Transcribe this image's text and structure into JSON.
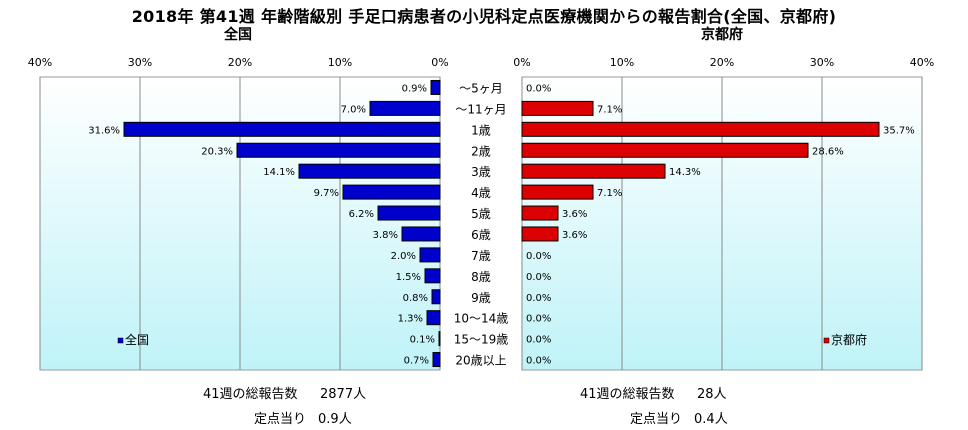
{
  "title": "2018年 第41週 年齢階級別 手足口病患者の小児科定点医療機関からの報告割合(全国、京都府)",
  "colors": {
    "national_bar": "#0000cc",
    "kyoto_bar": "#dd0000",
    "plot_bg_top": "#ffffff",
    "plot_bg_bottom": "#bff3f8",
    "gridline": "#8a8a8a"
  },
  "chart_data": [
    {
      "type": "bar",
      "orientation": "horizontal",
      "panel_title": "全国",
      "legend": "全国",
      "legend_position": "bottom-left",
      "xlim": [
        0,
        40
      ],
      "x_direction": "reversed",
      "ticks": [
        "40%",
        "30%",
        "20%",
        "10%",
        "0%"
      ],
      "grid": true,
      "categories": [
        "～5ヶ月",
        "～11ヶ月",
        "1歳",
        "2歳",
        "3歳",
        "4歳",
        "5歳",
        "6歳",
        "7歳",
        "8歳",
        "9歳",
        "10～14歳",
        "15～19歳",
        "20歳以上"
      ],
      "values": [
        0.9,
        7.0,
        31.6,
        20.3,
        14.1,
        9.7,
        6.2,
        3.8,
        2.0,
        1.5,
        0.8,
        1.3,
        0.1,
        0.7
      ],
      "labels": [
        "0.9%",
        "7.0%",
        "31.6%",
        "20.3%",
        "14.1%",
        "9.7%",
        "6.2%",
        "3.8%",
        "2.0%",
        "1.5%",
        "0.8%",
        "1.3%",
        "0.1%",
        "0.7%"
      ]
    },
    {
      "type": "bar",
      "orientation": "horizontal",
      "panel_title": "京都府",
      "legend": "京都府",
      "legend_position": "bottom-right",
      "xlim": [
        0,
        40
      ],
      "ticks": [
        "0%",
        "10%",
        "20%",
        "30%",
        "40%"
      ],
      "grid": true,
      "categories": [
        "～5ヶ月",
        "～11ヶ月",
        "1歳",
        "2歳",
        "3歳",
        "4歳",
        "5歳",
        "6歳",
        "7歳",
        "8歳",
        "9歳",
        "10～14歳",
        "15～19歳",
        "20歳以上"
      ],
      "values": [
        0.0,
        7.1,
        35.7,
        28.6,
        14.3,
        7.1,
        3.6,
        3.6,
        0.0,
        0.0,
        0.0,
        0.0,
        0.0,
        0.0
      ],
      "labels": [
        "0.0%",
        "7.1%",
        "35.7%",
        "28.6%",
        "14.3%",
        "7.1%",
        "3.6%",
        "3.6%",
        "0.0%",
        "0.0%",
        "0.0%",
        "0.0%",
        "0.0%",
        "0.0%"
      ]
    }
  ],
  "stats": {
    "national": {
      "total_label": "41週の総報告数",
      "total_value": "2877人",
      "per_label": "定点当り",
      "per_value": "0.9人"
    },
    "kyoto": {
      "total_label": "41週の総報告数",
      "total_value": "28人",
      "per_label": "定点当り",
      "per_value": "0.4人"
    }
  }
}
